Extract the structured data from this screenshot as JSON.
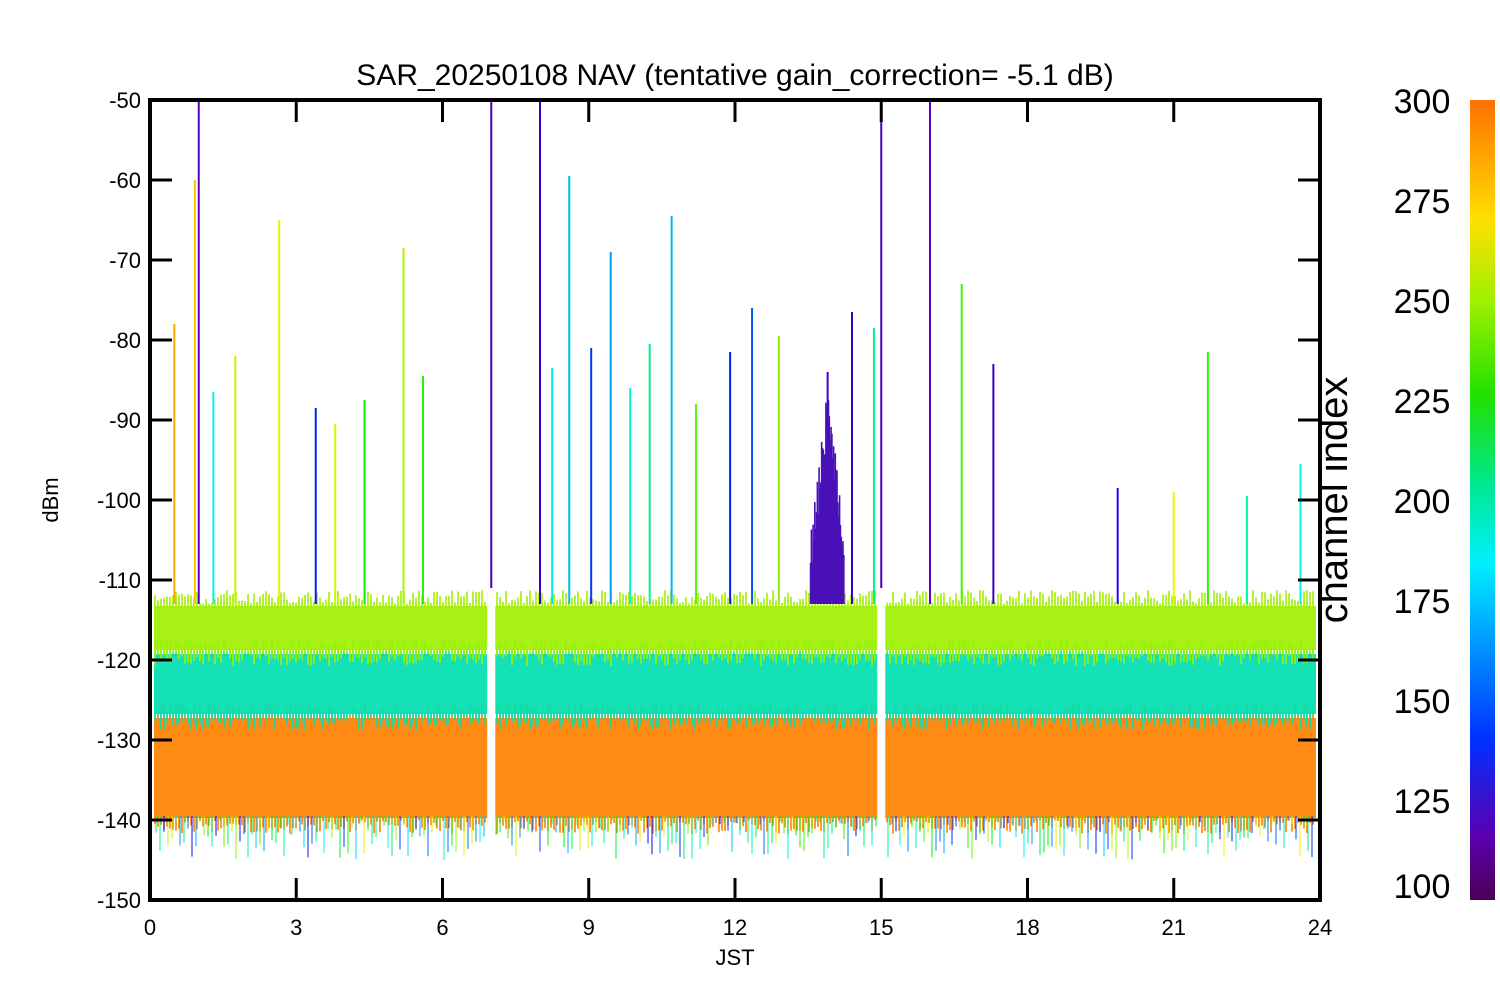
{
  "chart_data": {
    "type": "line",
    "title": "SAR_20250108 NAV (tentative gain_correction= -5.1 dB)",
    "xlabel": "JST",
    "ylabel": "dBm",
    "xlim": [
      0,
      24
    ],
    "ylim": [
      -150,
      -50
    ],
    "x_ticks": [
      "0",
      "3",
      "6",
      "9",
      "12",
      "15",
      "18",
      "21",
      "24"
    ],
    "y_ticks": [
      "-50",
      "-60",
      "-70",
      "-80",
      "-90",
      "-100",
      "-110",
      "-120",
      "-130",
      "-140",
      "-150"
    ],
    "grid": false,
    "legend": "none",
    "colorbar": {
      "label": "channel index",
      "range": [
        100,
        300
      ],
      "ticks": [
        "300",
        "275",
        "250",
        "225",
        "200",
        "175",
        "150",
        "125",
        "100"
      ],
      "colormap": "rainbow"
    },
    "data_gaps_jst": [
      7.0,
      15.0
    ],
    "bands": [
      {
        "channels": "high (orange)",
        "range_dbm": [
          -140,
          -127
        ],
        "color": "#ff8000"
      },
      {
        "channels": "mid (cyan/green)",
        "range_dbm": [
          -127,
          -119
        ],
        "color": "#00e0b0"
      },
      {
        "channels": "upper-mid (yellow-green)",
        "range_dbm": [
          -119,
          -113
        ],
        "color": "#a0f000"
      }
    ],
    "series": [
      {
        "values": [
          {
            "x": 0.5,
            "y": -78,
            "channel": 290
          },
          {
            "x": 0.92,
            "y": -60,
            "channel": 285
          },
          {
            "x": 1.0,
            "y": -50,
            "channel": 105
          },
          {
            "x": 1.3,
            "y": -86.5,
            "channel": 180
          },
          {
            "x": 1.75,
            "y": -82,
            "channel": 265
          },
          {
            "x": 2.65,
            "y": -65,
            "channel": 272
          },
          {
            "x": 3.4,
            "y": -88.5,
            "channel": 135
          },
          {
            "x": 3.8,
            "y": -90.5,
            "channel": 270
          },
          {
            "x": 4.4,
            "y": -87.5,
            "channel": 230
          },
          {
            "x": 5.2,
            "y": -68.5,
            "channel": 262
          },
          {
            "x": 5.6,
            "y": -84.5,
            "channel": 235
          },
          {
            "x": 7.0,
            "y": -50,
            "channel": 110
          },
          {
            "x": 8.0,
            "y": -50,
            "channel": 115
          },
          {
            "x": 8.25,
            "y": -83.5,
            "channel": 175
          },
          {
            "x": 8.6,
            "y": -59.5,
            "channel": 165
          },
          {
            "x": 9.05,
            "y": -81,
            "channel": 140
          },
          {
            "x": 9.45,
            "y": -69,
            "channel": 160
          },
          {
            "x": 9.85,
            "y": -86,
            "channel": 185
          },
          {
            "x": 10.25,
            "y": -80.5,
            "channel": 200
          },
          {
            "x": 10.7,
            "y": -64.5,
            "channel": 165
          },
          {
            "x": 11.2,
            "y": -88,
            "channel": 245
          },
          {
            "x": 11.9,
            "y": -81.5,
            "channel": 135
          },
          {
            "x": 12.35,
            "y": -76,
            "channel": 145
          },
          {
            "x": 12.9,
            "y": -79.5,
            "channel": 255
          },
          {
            "x": 13.9,
            "y": -84,
            "channel": 110
          },
          {
            "x": 14.4,
            "y": -76.5,
            "channel": 115
          },
          {
            "x": 14.85,
            "y": -78.5,
            "channel": 200
          },
          {
            "x": 15.0,
            "y": -50,
            "channel": 110
          },
          {
            "x": 16.0,
            "y": -50,
            "channel": 105
          },
          {
            "x": 16.65,
            "y": -73,
            "channel": 240
          },
          {
            "x": 17.3,
            "y": -83,
            "channel": 115
          },
          {
            "x": 19.85,
            "y": -98.5,
            "channel": 120
          },
          {
            "x": 21.0,
            "y": -99,
            "channel": 275
          },
          {
            "x": 21.7,
            "y": -81.5,
            "channel": 235
          },
          {
            "x": 22.5,
            "y": -99.5,
            "channel": 195
          },
          {
            "x": 23.6,
            "y": -95.5,
            "channel": 180
          }
        ]
      }
    ]
  }
}
